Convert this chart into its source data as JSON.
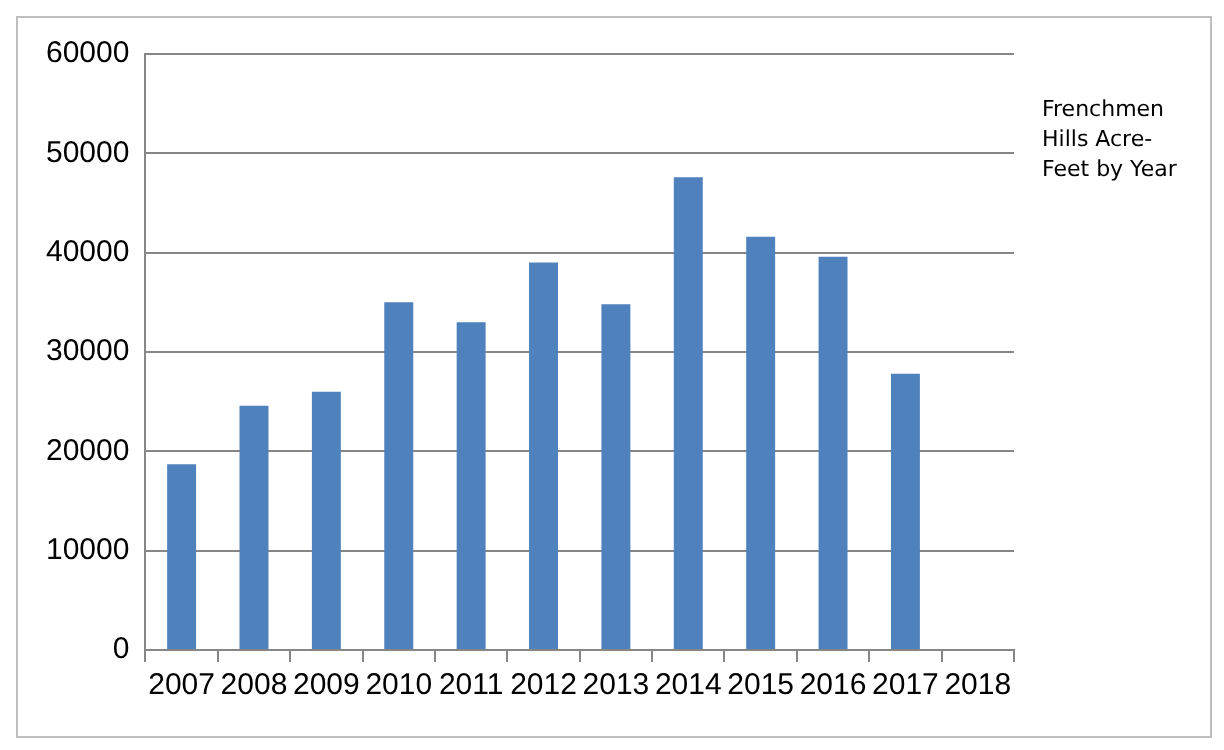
{
  "chart_data": {
    "type": "bar",
    "title": "Frenchmen Hills Acre-Feet by Year",
    "categories": [
      "2007",
      "2008",
      "2009",
      "2010",
      "2011",
      "2012",
      "2013",
      "2014",
      "2015",
      "2016",
      "2017",
      "2018"
    ],
    "values": [
      18700,
      24600,
      26000,
      35000,
      33000,
      39000,
      34800,
      47600,
      41600,
      39600,
      27800,
      null
    ],
    "color": "#4f81bd",
    "ylim": [
      0,
      60000
    ],
    "yticks": [
      0,
      10000,
      20000,
      30000,
      40000,
      50000,
      60000
    ],
    "grid": "y"
  }
}
